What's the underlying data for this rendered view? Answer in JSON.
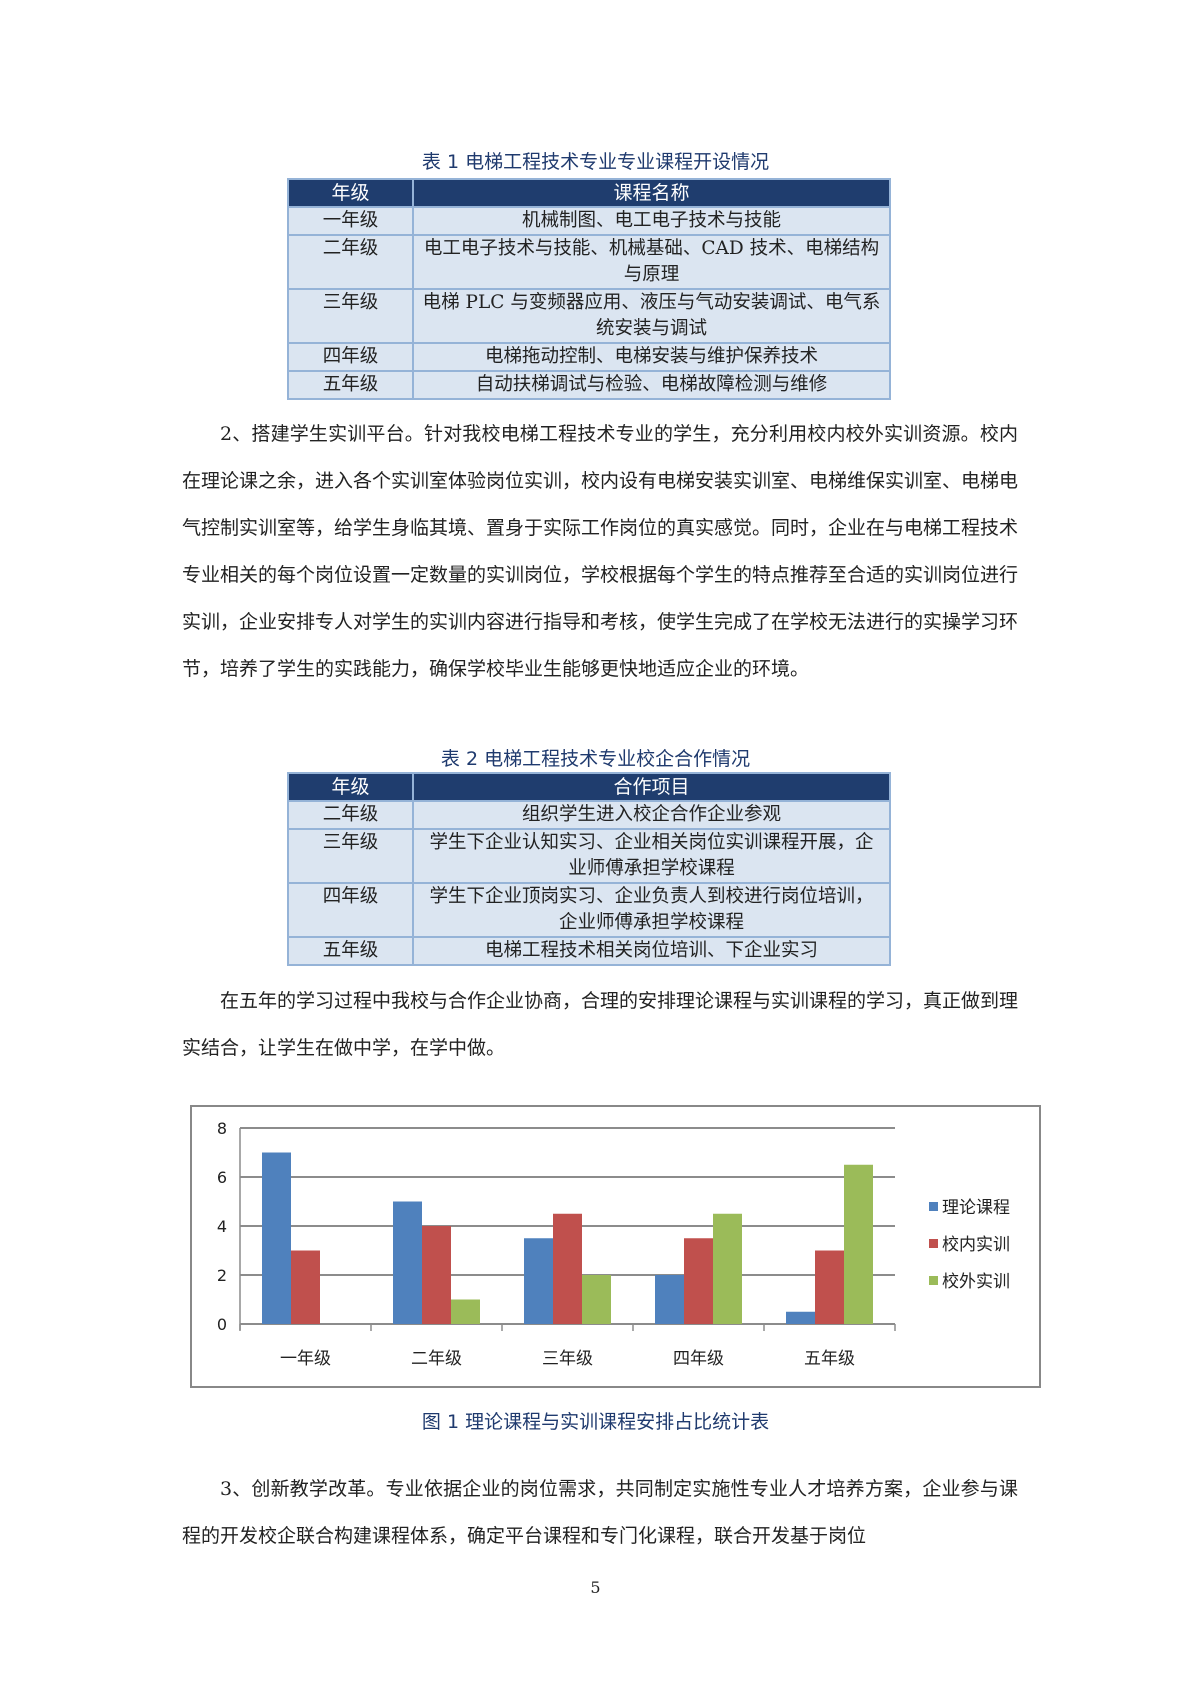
{
  "table1": {
    "caption": "表 1  电梯工程技术专业专业课程开设情况",
    "headers": [
      "年级",
      "课程名称"
    ],
    "rows": [
      {
        "grade": "一年级",
        "courses": "机械制图、电工电子技术与技能"
      },
      {
        "grade": "二年级",
        "courses": "电工电子技术与技能、机械基础、CAD 技术、电梯结构与原理"
      },
      {
        "grade": "三年级",
        "courses": "电梯 PLC 与变频器应用、液压与气动安装调试、电气系统安装与调试"
      },
      {
        "grade": "四年级",
        "courses": "电梯拖动控制、电梯安装与维护保养技术"
      },
      {
        "grade": "五年级",
        "courses": "自动扶梯调试与检验、电梯故障检测与维修"
      }
    ]
  },
  "paragraph1": "2、搭建学生实训平台。针对我校电梯工程技术专业的学生，充分利用校内校外实训资源。校内在理论课之余，进入各个实训室体验岗位实训，校内设有电梯安装实训室、电梯维保实训室、电梯电气控制实训室等，给学生身临其境、置身于实际工作岗位的真实感觉。同时，企业在与电梯工程技术专业相关的每个岗位设置一定数量的实训岗位，学校根据每个学生的特点推荐至合适的实训岗位进行实训，企业安排专人对学生的实训内容进行指导和考核，使学生完成了在学校无法进行的实操学习环节，培养了学生的实践能力，确保学校毕业生能够更快地适应企业的环境。",
  "table2": {
    "caption": "表 2 电梯工程技术专业校企合作情况",
    "headers": [
      "年级",
      "合作项目"
    ],
    "rows": [
      {
        "grade": "二年级",
        "project": "组织学生进入校企合作企业参观"
      },
      {
        "grade": "三年级",
        "project": "学生下企业认知实习、企业相关岗位实训课程开展，企业师傅承担学校课程"
      },
      {
        "grade": "四年级",
        "project": "学生下企业顶岗实习、企业负责人到校进行岗位培训，企业师傅承担学校课程"
      },
      {
        "grade": "五年级",
        "project": "电梯工程技术相关岗位培训、下企业实习"
      }
    ]
  },
  "paragraph2": "在五年的学习过程中我校与合作企业协商，合理的安排理论课程与实训课程的学习，真正做到理实结合，让学生在做中学，在学中做。",
  "chart_data": {
    "type": "bar",
    "title": "",
    "categories": [
      "一年级",
      "二年级",
      "三年级",
      "四年级",
      "五年级"
    ],
    "series": [
      {
        "name": "理论课程",
        "color": "#4f81bd",
        "values": [
          7,
          5,
          3.5,
          2,
          0.5
        ]
      },
      {
        "name": "校内实训",
        "color": "#c0504d",
        "values": [
          3,
          4,
          4.5,
          3.5,
          3
        ]
      },
      {
        "name": "校外实训",
        "color": "#9bbb59",
        "values": [
          0,
          1,
          2,
          4.5,
          6.5
        ]
      }
    ],
    "ylim": [
      0,
      8
    ],
    "yticks": [
      "0",
      "2",
      "4",
      "6",
      "8"
    ],
    "grid": true,
    "legend": "right"
  },
  "figure_caption": "图 1 理论课程与实训课程安排占比统计表",
  "paragraph3": "3、创新教学改革。专业依据企业的岗位需求，共同制定实施性专业人才培养方案，企业参与课程的开发校企联合构建课程体系，确定平台课程和专门化课程，联合开发基于岗位",
  "page_number": "5"
}
